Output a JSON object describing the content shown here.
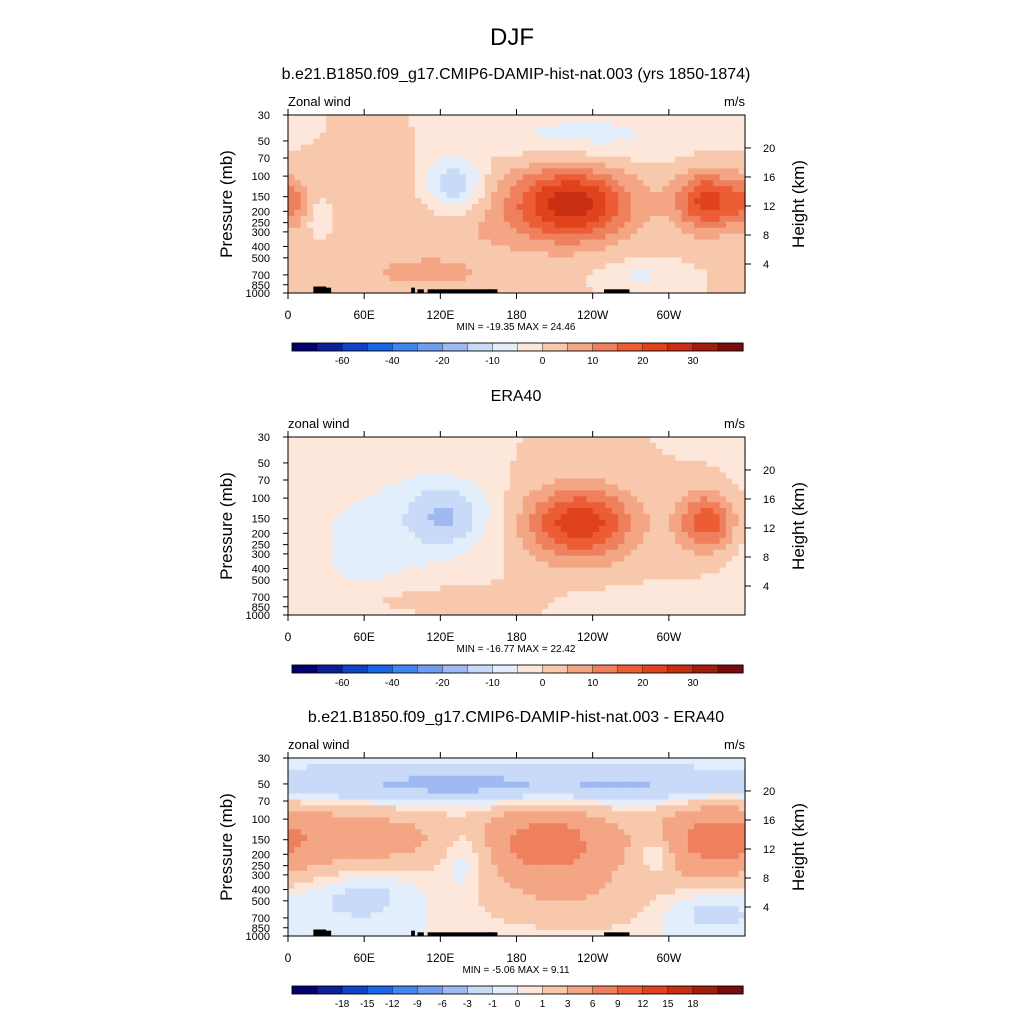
{
  "figure": {
    "main_title": "DJF"
  },
  "chart_data": [
    {
      "type": "heatmap",
      "title": "b.e21.B1850.f09_g17.CMIP6-DAMIP-hist-nat.003 (yrs 1850-1874)",
      "left_label": "Zonal wind",
      "units": "m/s",
      "ylabel": "Pressure (mb)",
      "ylabel_right": "Height (km)",
      "x_ticks": [
        "0",
        "60E",
        "120E",
        "180",
        "120W",
        "60W"
      ],
      "x_tick_values": [
        0,
        60,
        120,
        180,
        240,
        300
      ],
      "xlim": [
        0,
        360
      ],
      "y_ticks": [
        "30",
        "50",
        "70",
        "100",
        "150",
        "200",
        "250",
        "300",
        "400",
        "500",
        "700",
        "850",
        "1000"
      ],
      "y_tick_values": [
        30,
        50,
        70,
        100,
        150,
        200,
        250,
        300,
        400,
        500,
        700,
        850,
        1000
      ],
      "ylim": [
        1000,
        30
      ],
      "y_scale": "log",
      "right_ticks": [
        "20",
        "16",
        "12",
        "8",
        "4"
      ],
      "right_tick_values": [
        20,
        16,
        12,
        8,
        4
      ],
      "stats": "MIN = -19.35  MAX =  24.46",
      "levels": [
        -70,
        -60,
        -50,
        -40,
        -30,
        -20,
        -15,
        -10,
        -5,
        0,
        5,
        10,
        15,
        20,
        25,
        30,
        35,
        40
      ],
      "colorbar_labels": [
        "-60",
        "-40",
        "-20",
        "-10",
        "0",
        "10",
        "20",
        "30"
      ],
      "features": [
        {
          "lon": 130,
          "p": 200,
          "slon": 60,
          "slogp": 0.35,
          "amp": 6
        },
        {
          "lon": 225,
          "p": 175,
          "slon": 32,
          "slogp": 0.22,
          "amp": 27
        },
        {
          "lon": 330,
          "p": 165,
          "slon": 18,
          "slogp": 0.18,
          "amp": 22
        },
        {
          "lon": 0,
          "p": 165,
          "slon": 10,
          "slogp": 0.15,
          "amp": 10
        },
        {
          "lon": 130,
          "p": 120,
          "slon": 18,
          "slogp": 0.18,
          "amp": -18
        },
        {
          "lon": 230,
          "p": 45,
          "slon": 60,
          "slogp": 0.15,
          "amp": -7
        },
        {
          "lon": 275,
          "p": 700,
          "slon": 20,
          "slogp": 0.08,
          "amp": -6
        },
        {
          "lon": 25,
          "p": 230,
          "slon": 6,
          "slogp": 0.1,
          "amp": -6
        },
        {
          "lon": 105,
          "p": 700,
          "slon": 40,
          "slogp": 0.1,
          "amp": 5
        }
      ]
    },
    {
      "type": "heatmap",
      "title": "ERA40",
      "left_label": "zonal wind",
      "units": "m/s",
      "ylabel": "Pressure (mb)",
      "ylabel_right": "Height (km)",
      "x_ticks": [
        "0",
        "60E",
        "120E",
        "180",
        "120W",
        "60W"
      ],
      "x_tick_values": [
        0,
        60,
        120,
        180,
        240,
        300
      ],
      "xlim": [
        0,
        360
      ],
      "y_ticks": [
        "30",
        "50",
        "70",
        "100",
        "150",
        "200",
        "250",
        "300",
        "400",
        "500",
        "700",
        "850",
        "1000"
      ],
      "y_tick_values": [
        30,
        50,
        70,
        100,
        150,
        200,
        250,
        300,
        400,
        500,
        700,
        850,
        1000
      ],
      "ylim": [
        1000,
        30
      ],
      "y_scale": "log",
      "right_ticks": [
        "20",
        "16",
        "12",
        "8",
        "4"
      ],
      "right_tick_values": [
        20,
        16,
        12,
        8,
        4
      ],
      "stats": "MIN = -16.77  MAX =  22.42",
      "levels": [
        -70,
        -60,
        -50,
        -40,
        -30,
        -20,
        -15,
        -10,
        -5,
        0,
        5,
        10,
        15,
        20,
        25,
        30,
        35,
        40
      ],
      "colorbar_labels": [
        "-60",
        "-40",
        "-20",
        "-10",
        "0",
        "10",
        "20",
        "30"
      ],
      "features": [
        {
          "lon": 125,
          "p": 140,
          "slon": 25,
          "slogp": 0.22,
          "amp": -14
        },
        {
          "lon": 60,
          "p": 250,
          "slon": 45,
          "slogp": 0.55,
          "amp": -6
        },
        {
          "lon": 230,
          "p": 165,
          "slon": 30,
          "slogp": 0.22,
          "amp": 24
        },
        {
          "lon": 330,
          "p": 160,
          "slon": 16,
          "slogp": 0.18,
          "amp": 19
        },
        {
          "lon": 110,
          "p": 750,
          "slon": 45,
          "slogp": 0.08,
          "amp": 5
        },
        {
          "lon": 290,
          "p": 800,
          "slon": 40,
          "slogp": 0.08,
          "amp": -5
        }
      ]
    },
    {
      "type": "heatmap",
      "title": "b.e21.B1850.f09_g17.CMIP6-DAMIP-hist-nat.003 - ERA40",
      "left_label": "zonal wind",
      "units": "m/s",
      "ylabel": "Pressure (mb)",
      "ylabel_right": "Height (km)",
      "x_ticks": [
        "0",
        "60E",
        "120E",
        "180",
        "120W",
        "60W"
      ],
      "x_tick_values": [
        0,
        60,
        120,
        180,
        240,
        300
      ],
      "xlim": [
        0,
        360
      ],
      "y_ticks": [
        "30",
        "50",
        "70",
        "100",
        "150",
        "200",
        "250",
        "300",
        "400",
        "500",
        "700",
        "850",
        "1000"
      ],
      "y_tick_values": [
        30,
        50,
        70,
        100,
        150,
        200,
        250,
        300,
        400,
        500,
        700,
        850,
        1000
      ],
      "ylim": [
        1000,
        30
      ],
      "y_scale": "log",
      "right_ticks": [
        "20",
        "16",
        "12",
        "8",
        "4"
      ],
      "right_tick_values": [
        20,
        16,
        12,
        8,
        4
      ],
      "stats": "MIN =  -5.06  MAX =   9.11",
      "levels": [
        -21,
        -18,
        -15,
        -12,
        -9,
        -6,
        -3,
        -1,
        0,
        1,
        3,
        6,
        9,
        12,
        15,
        18,
        21
      ],
      "colorbar_labels": [
        "-18",
        "-15",
        "-12",
        "-9",
        "-6",
        "-3",
        "-1",
        "0",
        "1",
        "3",
        "6",
        "9",
        "12",
        "15",
        "18"
      ],
      "features": [
        {
          "lon": 180,
          "p": 52,
          "slon": 200,
          "slogp": 0.12,
          "amp": -4
        },
        {
          "lon": 205,
          "p": 160,
          "slon": 40,
          "slogp": 0.25,
          "amp": 7.5
        },
        {
          "lon": 45,
          "p": 150,
          "slon": 60,
          "slogp": 0.22,
          "amp": 5
        },
        {
          "lon": 330,
          "p": 150,
          "slon": 30,
          "slogp": 0.25,
          "amp": 5
        },
        {
          "lon": 140,
          "p": 200,
          "slon": 15,
          "slogp": 0.2,
          "amp": -3
        },
        {
          "lon": 290,
          "p": 200,
          "slon": 10,
          "slogp": 0.12,
          "amp": -3
        },
        {
          "lon": 60,
          "p": 400,
          "slon": 30,
          "slogp": 0.2,
          "amp": -2
        },
        {
          "lon": 230,
          "p": 500,
          "slon": 60,
          "slogp": 0.2,
          "amp": 2
        },
        {
          "lon": 330,
          "p": 600,
          "slon": 30,
          "slogp": 0.15,
          "amp": -2
        }
      ]
    }
  ],
  "colors": {
    "levels18": [
      "#03006d",
      "#0c1e9a",
      "#0f44c8",
      "#1a66e8",
      "#3f86f3",
      "#719cf1",
      "#9fbaf3",
      "#c8daf7",
      "#e2eefb",
      "#fde7da",
      "#f8c8ac",
      "#f3a584",
      "#ef805d",
      "#ec5d35",
      "#e0421c",
      "#c82e12",
      "#a11d0c",
      "#790c0c"
    ],
    "levels16": [
      "#03006d",
      "#0c1e9a",
      "#0f44c8",
      "#1a66e8",
      "#3f86f3",
      "#719cf1",
      "#9fbaf3",
      "#c8daf7",
      "#fde7da",
      "#f8c8ac",
      "#f3a584",
      "#ef805d",
      "#ec5d35",
      "#e0421c",
      "#c82e12",
      "#790c0c"
    ],
    "topography": "#000000"
  }
}
